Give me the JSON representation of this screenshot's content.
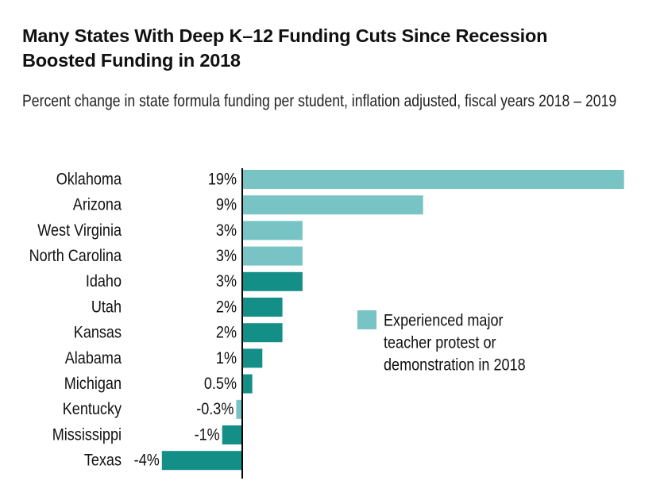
{
  "chart_data": {
    "type": "bar",
    "orientation": "horizontal",
    "title": "Many States With Deep K–12 Funding Cuts Since Recession Boosted Funding in 2018",
    "subtitle": "Percent change in state formula funding per student, inflation adjusted, fiscal years 2018 – 2019",
    "categories": [
      "Oklahoma",
      "Arizona",
      "West Virginia",
      "North Carolina",
      "Idaho",
      "Utah",
      "Kansas",
      "Alabama",
      "Michigan",
      "Kentucky",
      "Mississippi",
      "Texas"
    ],
    "values": [
      19,
      9,
      3,
      3,
      3,
      2,
      2,
      1,
      0.5,
      -0.3,
      -1,
      -4
    ],
    "value_labels": [
      "19%",
      "9%",
      "3%",
      "3%",
      "3%",
      "2%",
      "2%",
      "1%",
      "0.5%",
      "-0.3%",
      "-1%",
      "-4%"
    ],
    "protest": [
      true,
      true,
      true,
      true,
      false,
      false,
      false,
      false,
      false,
      true,
      false,
      false
    ],
    "legend": {
      "label_lines": [
        "Experienced major",
        "teacher protest or",
        "demonstration in 2018"
      ],
      "placement": "right"
    },
    "colors": {
      "protest": "#78c4c4",
      "other": "#148f87",
      "axis": "#000000"
    },
    "xlim": [
      -4,
      19
    ],
    "grid": false
  }
}
